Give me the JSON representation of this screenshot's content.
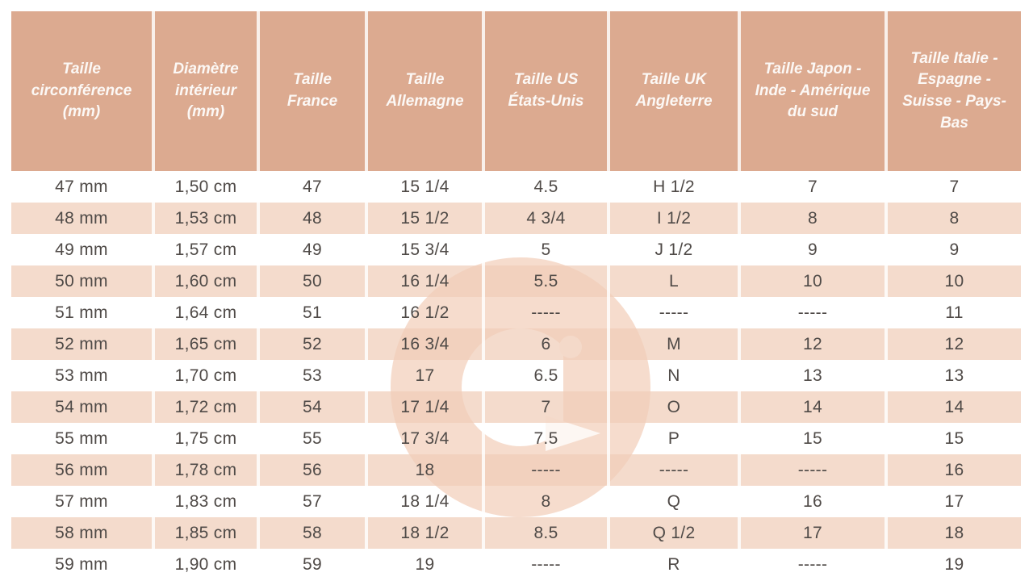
{
  "table": {
    "columns": [
      "Taille circonférence (mm)",
      "Diamètre intérieur (mm)",
      "Taille France",
      "Taille Allemagne",
      "Taille US États-Unis",
      "Taille UK Angleterre",
      "Taille Japon - Inde - Amérique du sud",
      "Taille Italie - Espagne - Suisse - Pays-Bas"
    ],
    "rows": [
      [
        "47 mm",
        "1,50 cm",
        "47",
        "15 1/4",
        "4.5",
        "H 1/2",
        "7",
        "7"
      ],
      [
        "48 mm",
        "1,53 cm",
        "48",
        "15 1/2",
        "4 3/4",
        "I 1/2",
        "8",
        "8"
      ],
      [
        "49 mm",
        "1,57 cm",
        "49",
        "15 3/4",
        "5",
        "J 1/2",
        "9",
        "9"
      ],
      [
        "50 mm",
        "1,60 cm",
        "50",
        "16 1/4",
        "5.5",
        "L",
        "10",
        "10"
      ],
      [
        "51 mm",
        "1,64 cm",
        "51",
        "16 1/2",
        "-----",
        "-----",
        "-----",
        "11"
      ],
      [
        "52 mm",
        "1,65 cm",
        "52",
        "16 3/4",
        "6",
        "M",
        "12",
        "12"
      ],
      [
        "53 mm",
        "1,70 cm",
        "53",
        "17",
        "6.5",
        "N",
        "13",
        "13"
      ],
      [
        "54 mm",
        "1,72 cm",
        "54",
        "17 1/4",
        "7",
        "O",
        "14",
        "14"
      ],
      [
        "55 mm",
        "1,75 cm",
        "55",
        "17 3/4",
        "7.5",
        "P",
        "15",
        "15"
      ],
      [
        "56 mm",
        "1,78 cm",
        "56",
        "18",
        "-----",
        "-----",
        "-----",
        "16"
      ],
      [
        "57 mm",
        "1,83 cm",
        "57",
        "18 1/4",
        "8",
        "Q",
        "16",
        "17"
      ],
      [
        "58 mm",
        "1,85 cm",
        "58",
        "18 1/2",
        "8.5",
        "Q 1/2",
        "17",
        "18"
      ],
      [
        "59 mm",
        "1,90 cm",
        "59",
        "19",
        "-----",
        "R",
        "-----",
        "19"
      ]
    ]
  },
  "watermark": {
    "icon": "brand-g-logo"
  },
  "colors": {
    "header_bg": "#dcaa90",
    "header_text": "#fcf8f5",
    "row_alt": "#f4dbcd",
    "cell_text": "#4f4a47",
    "separator": "#ffffff",
    "watermark_pink": "#f6dccd",
    "watermark_knockout": "#fdf7f3"
  }
}
